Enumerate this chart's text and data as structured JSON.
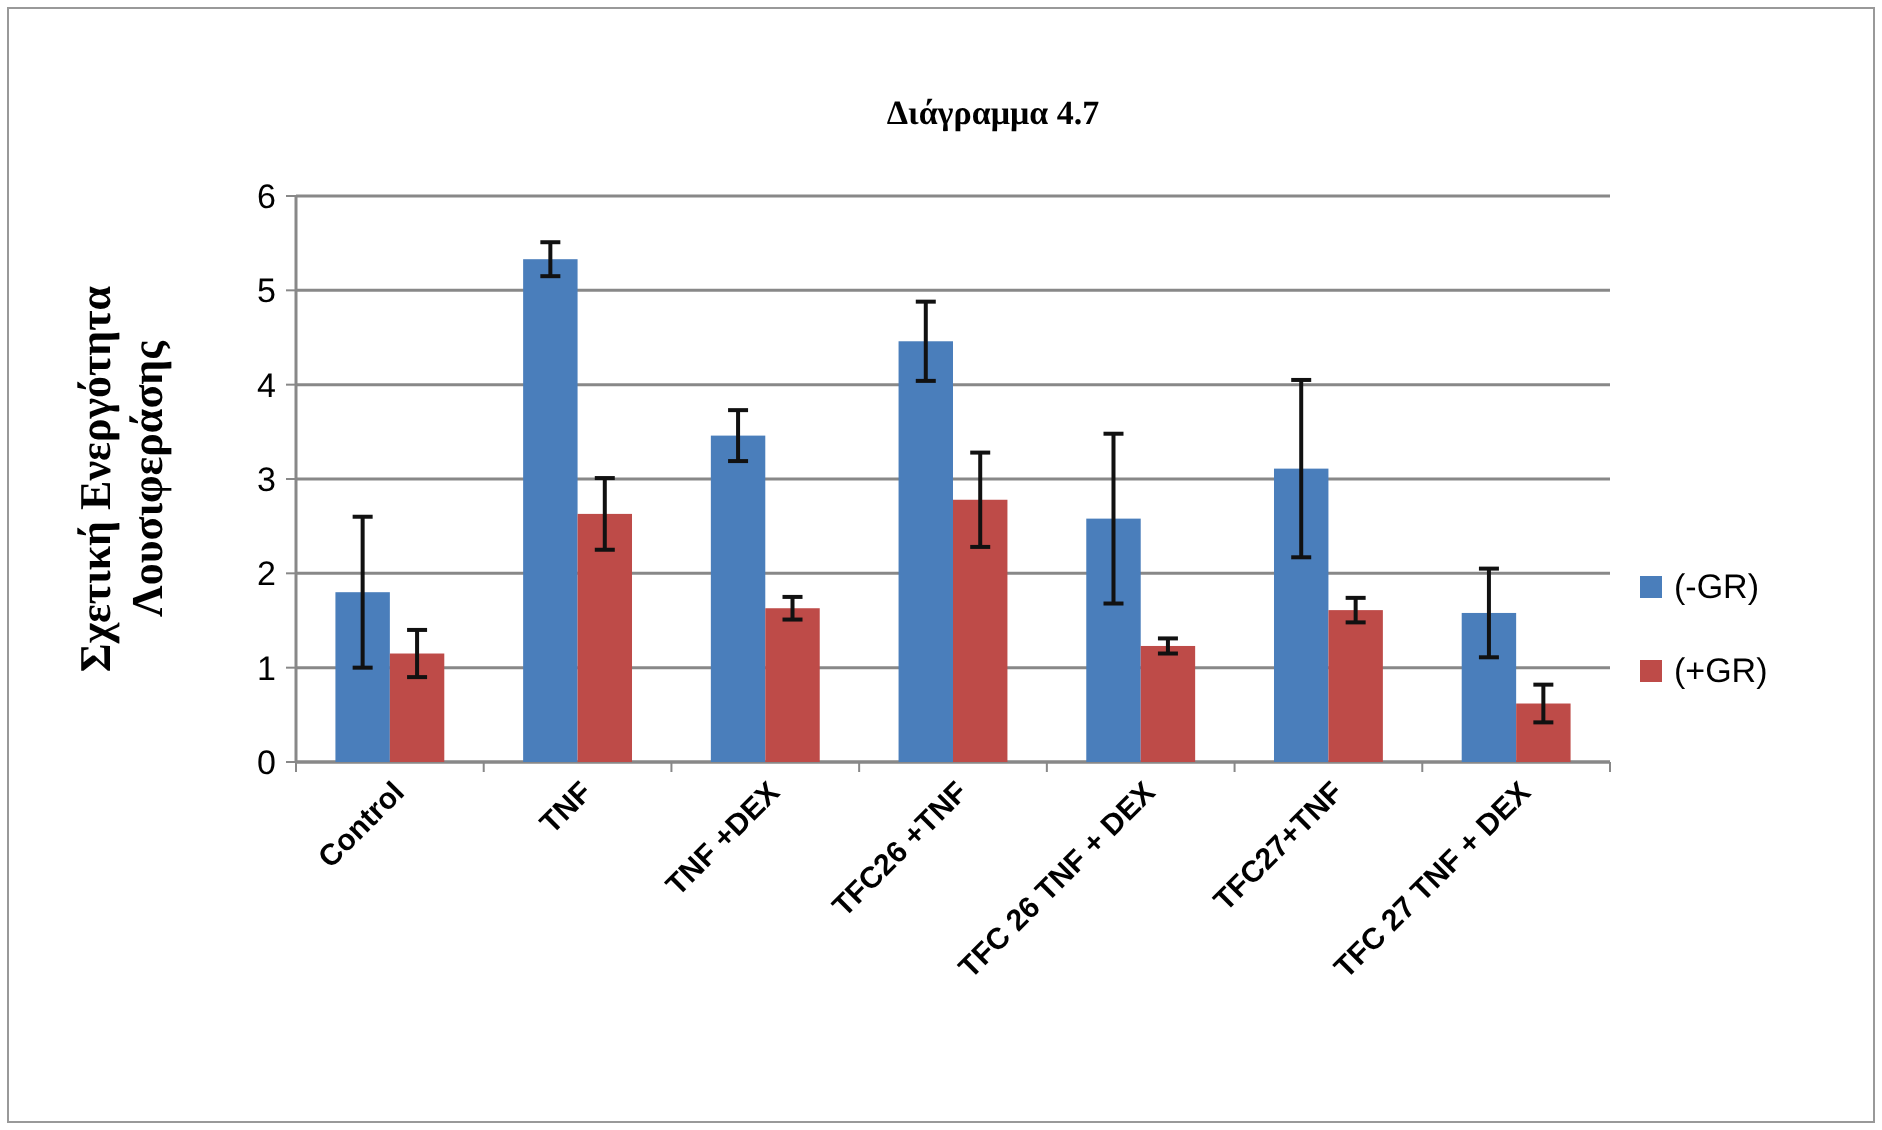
{
  "chart_data": {
    "type": "bar",
    "title": "Διάγραμμα 4.7",
    "ylabel": "Σχετική Ενεργότητα\nΛουσιφεράσης",
    "categories": [
      "Control",
      "TNF",
      "TNF +DEX",
      "TFC26 +TNF",
      "TFC 26 TNF + DEX",
      "TFC27+TNF",
      "TFC 27 TNF + DEX"
    ],
    "series": [
      {
        "name": "(-GR)",
        "color": "#4a7ebb",
        "values": [
          1.8,
          5.33,
          3.46,
          4.46,
          2.58,
          3.11,
          1.58
        ],
        "errors": [
          0.8,
          0.18,
          0.27,
          0.42,
          0.9,
          0.94,
          0.47
        ]
      },
      {
        "name": "(+GR)",
        "color": "#be4b48",
        "values": [
          1.15,
          2.63,
          1.63,
          2.78,
          1.23,
          1.61,
          0.62
        ],
        "errors": [
          0.25,
          0.38,
          0.12,
          0.5,
          0.08,
          0.13,
          0.2
        ]
      }
    ],
    "ylim": [
      0,
      6
    ],
    "yticks": [
      0,
      1,
      2,
      3,
      4,
      5,
      6
    ],
    "grid": "y",
    "legend": "right"
  }
}
